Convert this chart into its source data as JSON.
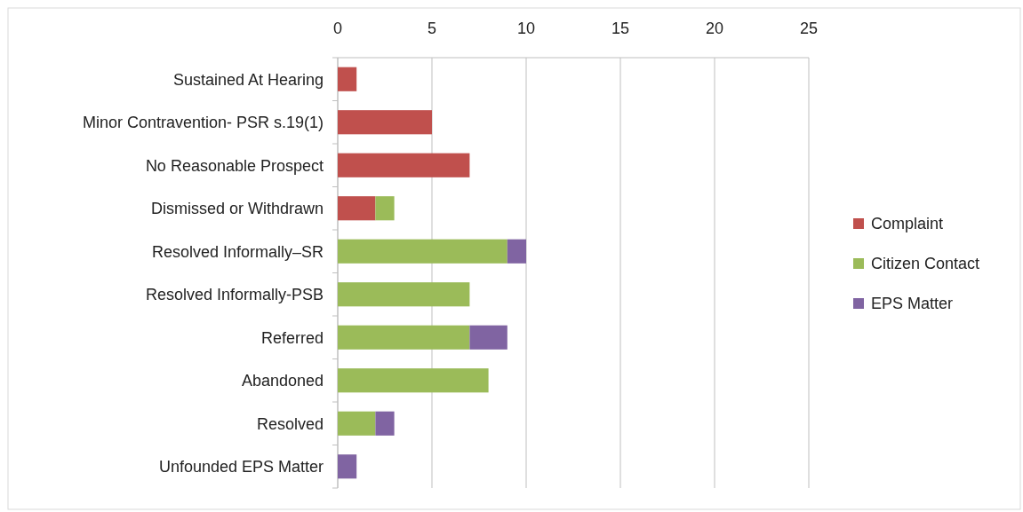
{
  "chart_data": {
    "type": "bar",
    "orientation": "horizontal",
    "stacked": true,
    "categories": [
      "Sustained At Hearing",
      "Minor Contravention- PSR s.19(1)",
      "No Reasonable Prospect",
      "Dismissed or Withdrawn",
      "Resolved Informally–SR",
      "Resolved Informally-PSB",
      "Referred",
      "Abandoned",
      "Resolved",
      "Unfounded EPS Matter"
    ],
    "series": [
      {
        "name": "Complaint",
        "color": "#c0504d",
        "values": [
          1,
          5,
          7,
          2,
          null,
          null,
          null,
          null,
          null,
          null
        ]
      },
      {
        "name": "Citizen Contact",
        "color": "#9bbb59",
        "values": [
          null,
          null,
          null,
          1,
          9,
          7,
          7,
          8,
          2,
          null
        ]
      },
      {
        "name": "EPS Matter",
        "color": "#8064a2",
        "values": [
          null,
          null,
          null,
          null,
          1,
          null,
          2,
          null,
          1,
          1
        ]
      }
    ],
    "xlim": [
      0,
      25
    ],
    "xticks": [
      0,
      5,
      10,
      15,
      20,
      25
    ],
    "grid": "x",
    "legend": "right"
  }
}
